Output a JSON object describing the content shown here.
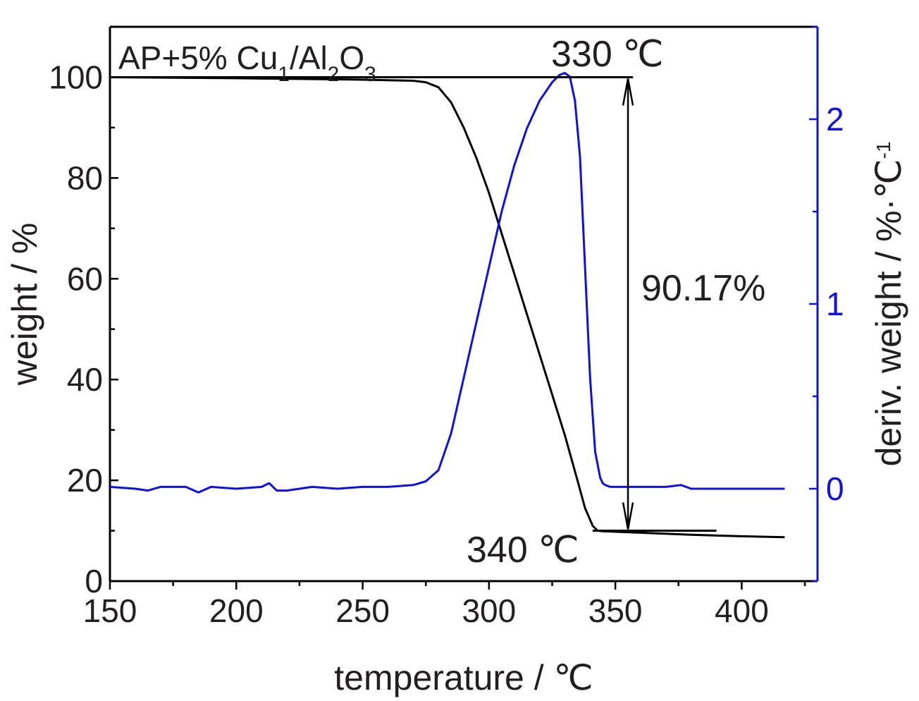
{
  "chart_data": {
    "type": "line",
    "title": "AP+5% Cu1/Al2O3",
    "title_parts": {
      "main": "AP+5% Cu",
      "sub1": "1",
      "mid": "/Al",
      "sub2": "2",
      "mid2": "O",
      "sub3": "3"
    },
    "xlabel": "temperature / ℃",
    "ylabel_left": "weight / %",
    "ylabel_right_main": "deriv. weight / %·℃",
    "ylabel_right_sup": "-1",
    "xlim": [
      150,
      430
    ],
    "ylim_left": [
      0,
      110
    ],
    "ylim_right": [
      -0.5,
      2.5
    ],
    "x_ticks": [
      "150",
      "200",
      "250",
      "300",
      "350",
      "400"
    ],
    "y_ticks_left": [
      "0",
      "20",
      "40",
      "60",
      "80",
      "100"
    ],
    "y_ticks_right": [
      "0",
      "1",
      "2"
    ],
    "grid": false,
    "colors": {
      "weight": "#000000",
      "deriv": "#1010e0",
      "right_axis": "#1010e0",
      "text": "#231f20"
    },
    "annotations": {
      "peak_label": "330 ℃",
      "end_label": "340 ℃",
      "loss_label": "90.17%"
    },
    "series": [
      {
        "axis": "left",
        "x": [
          150,
          200,
          250,
          270,
          275,
          280,
          285,
          290,
          295,
          300,
          305,
          310,
          315,
          320,
          325,
          330,
          335,
          338,
          341,
          343,
          345,
          350,
          360,
          380,
          400,
          417
        ],
        "y": [
          100,
          99.8,
          99.5,
          99.3,
          99,
          98,
          95,
          90,
          84,
          77,
          69,
          61,
          53,
          45,
          37,
          29,
          20,
          14.5,
          11,
          10,
          9.9,
          9.8,
          9.6,
          9.2,
          8.9,
          8.7
        ]
      },
      {
        "axis": "right",
        "x": [
          150,
          160,
          165,
          170,
          180,
          185,
          190,
          200,
          210,
          213,
          216,
          220,
          230,
          240,
          250,
          260,
          270,
          275,
          280,
          285,
          290,
          295,
          300,
          305,
          310,
          315,
          320,
          325,
          328,
          330,
          332,
          334,
          336,
          338,
          340,
          342,
          344,
          345,
          346,
          348,
          350,
          360,
          370,
          376,
          380,
          390,
          400,
          417
        ],
        "y": [
          0.01,
          0.0,
          -0.01,
          0.01,
          0.01,
          -0.02,
          0.01,
          0.0,
          0.01,
          0.03,
          -0.01,
          -0.01,
          0.01,
          0.0,
          0.01,
          0.01,
          0.02,
          0.04,
          0.1,
          0.3,
          0.6,
          0.9,
          1.2,
          1.5,
          1.75,
          1.95,
          2.1,
          2.2,
          2.24,
          2.25,
          2.23,
          2.1,
          1.8,
          1.2,
          0.6,
          0.2,
          0.06,
          0.03,
          0.02,
          0.01,
          0.01,
          0.01,
          0.01,
          0.02,
          0.0,
          0.0,
          0.0,
          0.0
        ]
      },
      {
        "axis": "left",
        "role": "baseline-upper",
        "x": [
          150,
          357
        ],
        "y": [
          100,
          100
        ]
      },
      {
        "axis": "left",
        "role": "baseline-lower",
        "x": [
          341,
          390
        ],
        "y": [
          10,
          10
        ]
      }
    ],
    "arrow": {
      "x": 355,
      "y_from": 100,
      "y_to": 10
    }
  }
}
